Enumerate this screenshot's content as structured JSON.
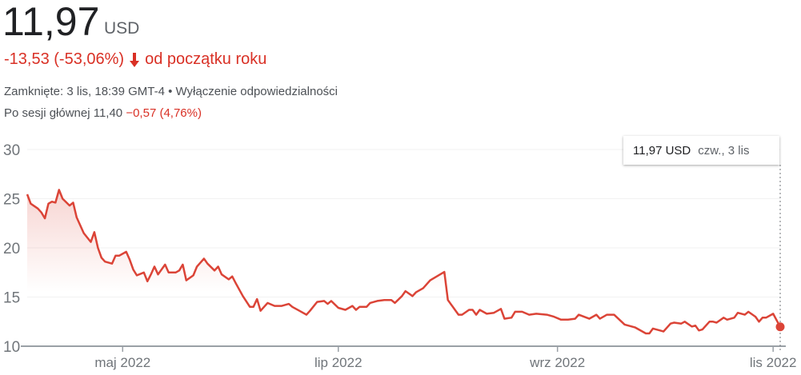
{
  "header": {
    "price": "11,97",
    "currency": "USD",
    "change": "-13,53 (-53,06%)",
    "change_icon": "arrow-down-icon",
    "change_period": "od początku roku",
    "closed": "Zamknięte: 3 lis, 18:39 GMT-4",
    "separator": "•",
    "disclaimer": "Wyłączenie odpowiedzialności",
    "after_label": "Po sesji głównej 11,40",
    "after_change": "−0,57 (4,76%)"
  },
  "colors": {
    "line": "#db4437",
    "negative": "#d93025",
    "grid": "#f1f1f1",
    "axis": "#9aa0a6"
  },
  "tooltip": {
    "value": "11,97 USD",
    "date": "czw., 3 lis"
  },
  "chart_data": {
    "type": "line",
    "title": "",
    "xlabel": "",
    "ylabel": "",
    "ylim": [
      10,
      30
    ],
    "yticks": [
      10,
      15,
      20,
      25,
      30
    ],
    "xticks": [
      {
        "date": "2022-05-01",
        "label": "maj 2022"
      },
      {
        "date": "2022-07-01",
        "label": "lip 2022"
      },
      {
        "date": "2022-09-01",
        "label": "wrz 2022"
      },
      {
        "date": "2022-11-01",
        "label": "lis 2022"
      }
    ],
    "xlim": [
      "2022-04-04",
      "2022-11-03"
    ],
    "grid": true,
    "series": [
      {
        "points": [
          [
            "2022-04-04",
            25.45
          ],
          [
            "2022-04-05",
            24.5
          ],
          [
            "2022-04-07",
            24.0
          ],
          [
            "2022-04-08",
            23.6
          ],
          [
            "2022-04-09",
            23.0
          ],
          [
            "2022-04-10",
            24.5
          ],
          [
            "2022-04-11",
            24.7
          ],
          [
            "2022-04-12",
            24.6
          ],
          [
            "2022-04-13",
            25.9
          ],
          [
            "2022-04-14",
            25.0
          ],
          [
            "2022-04-16",
            24.3
          ],
          [
            "2022-04-17",
            24.6
          ],
          [
            "2022-04-18",
            23.1
          ],
          [
            "2022-04-20",
            21.5
          ],
          [
            "2022-04-22",
            20.6
          ],
          [
            "2022-04-23",
            21.6
          ],
          [
            "2022-04-24",
            20.0
          ],
          [
            "2022-04-25",
            19.0
          ],
          [
            "2022-04-26",
            18.6
          ],
          [
            "2022-04-28",
            18.4
          ],
          [
            "2022-04-29",
            19.2
          ],
          [
            "2022-04-30",
            19.2
          ],
          [
            "2022-05-02",
            19.6
          ],
          [
            "2022-05-03",
            18.8
          ],
          [
            "2022-05-04",
            17.8
          ],
          [
            "2022-05-05",
            17.2
          ],
          [
            "2022-05-07",
            17.5
          ],
          [
            "2022-05-08",
            16.6
          ],
          [
            "2022-05-09",
            17.3
          ],
          [
            "2022-05-10",
            18.1
          ],
          [
            "2022-05-11",
            17.3
          ],
          [
            "2022-05-13",
            18.3
          ],
          [
            "2022-05-14",
            17.5
          ],
          [
            "2022-05-16",
            17.5
          ],
          [
            "2022-05-17",
            17.7
          ],
          [
            "2022-05-18",
            18.3
          ],
          [
            "2022-05-19",
            16.7
          ],
          [
            "2022-05-21",
            17.2
          ],
          [
            "2022-05-22",
            18.1
          ],
          [
            "2022-05-24",
            18.9
          ],
          [
            "2022-05-25",
            18.4
          ],
          [
            "2022-05-27",
            17.7
          ],
          [
            "2022-05-28",
            18.1
          ],
          [
            "2022-05-29",
            17.3
          ],
          [
            "2022-05-31",
            16.8
          ],
          [
            "2022-06-01",
            17.1
          ],
          [
            "2022-06-02",
            16.4
          ],
          [
            "2022-06-04",
            15.1
          ],
          [
            "2022-06-06",
            14.0
          ],
          [
            "2022-06-07",
            14.0
          ],
          [
            "2022-06-08",
            14.8
          ],
          [
            "2022-06-09",
            13.6
          ],
          [
            "2022-06-11",
            14.4
          ],
          [
            "2022-06-13",
            14.1
          ],
          [
            "2022-06-15",
            14.1
          ],
          [
            "2022-06-17",
            14.3
          ],
          [
            "2022-06-18",
            14.0
          ],
          [
            "2022-06-20",
            13.6
          ],
          [
            "2022-06-22",
            13.2
          ],
          [
            "2022-06-23",
            13.6
          ],
          [
            "2022-06-25",
            14.5
          ],
          [
            "2022-06-27",
            14.6
          ],
          [
            "2022-06-28",
            14.3
          ],
          [
            "2022-06-29",
            14.6
          ],
          [
            "2022-07-01",
            13.9
          ],
          [
            "2022-07-03",
            13.7
          ],
          [
            "2022-07-05",
            14.1
          ],
          [
            "2022-07-06",
            13.7
          ],
          [
            "2022-07-07",
            14.0
          ],
          [
            "2022-07-09",
            14.0
          ],
          [
            "2022-07-10",
            14.4
          ],
          [
            "2022-07-12",
            14.6
          ],
          [
            "2022-07-14",
            14.7
          ],
          [
            "2022-07-16",
            14.7
          ],
          [
            "2022-07-17",
            14.4
          ],
          [
            "2022-07-19",
            15.1
          ],
          [
            "2022-07-20",
            15.6
          ],
          [
            "2022-07-22",
            15.1
          ],
          [
            "2022-07-23",
            15.5
          ],
          [
            "2022-07-25",
            15.9
          ],
          [
            "2022-07-27",
            16.7
          ],
          [
            "2022-07-31",
            17.55
          ],
          [
            "2022-08-01",
            14.7
          ],
          [
            "2022-08-02",
            14.2
          ],
          [
            "2022-08-04",
            13.2
          ],
          [
            "2022-08-05",
            13.2
          ],
          [
            "2022-08-07",
            13.7
          ],
          [
            "2022-08-08",
            13.7
          ],
          [
            "2022-08-09",
            13.2
          ],
          [
            "2022-08-10",
            13.7
          ],
          [
            "2022-08-12",
            13.3
          ],
          [
            "2022-08-14",
            13.4
          ],
          [
            "2022-08-16",
            13.8
          ],
          [
            "2022-08-17",
            12.8
          ],
          [
            "2022-08-19",
            12.9
          ],
          [
            "2022-08-20",
            13.5
          ],
          [
            "2022-08-22",
            13.5
          ],
          [
            "2022-08-24",
            13.2
          ],
          [
            "2022-08-26",
            13.3
          ],
          [
            "2022-08-29",
            13.2
          ],
          [
            "2022-08-31",
            13.0
          ],
          [
            "2022-09-02",
            12.7
          ],
          [
            "2022-09-04",
            12.7
          ],
          [
            "2022-09-06",
            12.8
          ],
          [
            "2022-09-07",
            13.2
          ],
          [
            "2022-09-10",
            12.8
          ],
          [
            "2022-09-12",
            13.2
          ],
          [
            "2022-09-13",
            12.8
          ],
          [
            "2022-09-15",
            13.2
          ],
          [
            "2022-09-17",
            13.2
          ],
          [
            "2022-09-20",
            12.2
          ],
          [
            "2022-09-23",
            11.9
          ],
          [
            "2022-09-26",
            11.3
          ],
          [
            "2022-09-27",
            11.3
          ],
          [
            "2022-09-28",
            11.8
          ],
          [
            "2022-09-30",
            11.6
          ],
          [
            "2022-10-01",
            11.5
          ],
          [
            "2022-10-03",
            12.3
          ],
          [
            "2022-10-04",
            12.4
          ],
          [
            "2022-10-06",
            12.3
          ],
          [
            "2022-10-07",
            12.5
          ],
          [
            "2022-10-09",
            12.0
          ],
          [
            "2022-10-10",
            12.1
          ],
          [
            "2022-10-11",
            11.6
          ],
          [
            "2022-10-12",
            11.7
          ],
          [
            "2022-10-14",
            12.5
          ],
          [
            "2022-10-15",
            12.5
          ],
          [
            "2022-10-16",
            12.4
          ],
          [
            "2022-10-18",
            12.9
          ],
          [
            "2022-10-19",
            12.7
          ],
          [
            "2022-10-21",
            12.9
          ],
          [
            "2022-10-22",
            13.4
          ],
          [
            "2022-10-24",
            13.2
          ],
          [
            "2022-10-25",
            13.5
          ],
          [
            "2022-10-27",
            13.0
          ],
          [
            "2022-10-28",
            12.5
          ],
          [
            "2022-10-29",
            12.9
          ],
          [
            "2022-10-30",
            12.9
          ],
          [
            "2022-11-01",
            13.3
          ],
          [
            "2022-11-03",
            11.97
          ]
        ]
      }
    ]
  }
}
